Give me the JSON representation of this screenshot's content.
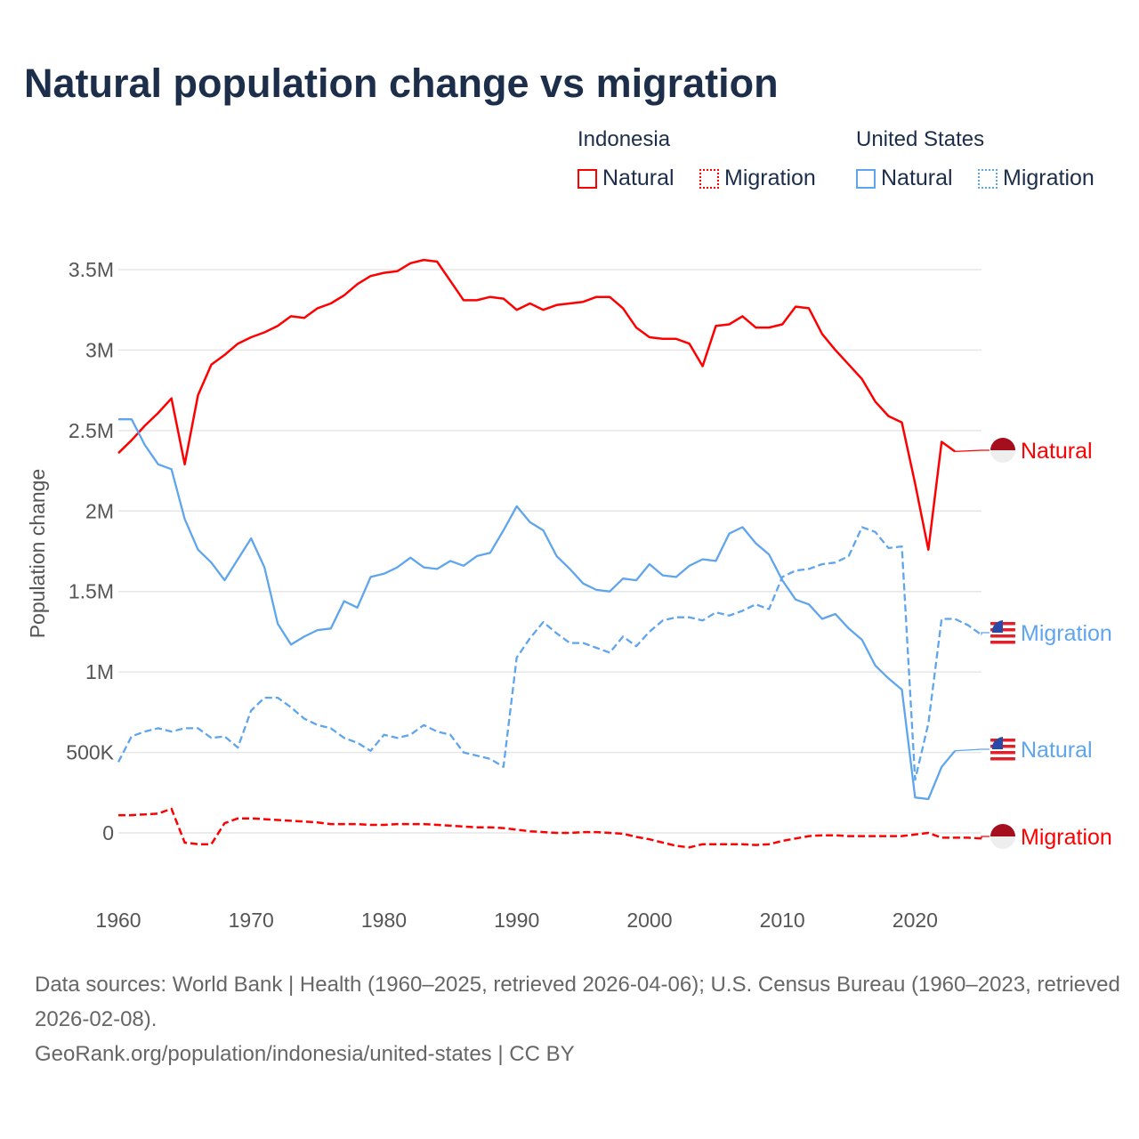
{
  "title": "Natural population change vs migration",
  "legend": {
    "groups": [
      {
        "name": "Indonesia",
        "items": [
          "Natural",
          "Migration"
        ]
      },
      {
        "name": "United States",
        "items": [
          "Natural",
          "Migration"
        ]
      }
    ]
  },
  "colors": {
    "indonesia": "#ff0000",
    "united_states": "#5fa5ee",
    "grid": "#e6e6e6",
    "axis_text": "#555555"
  },
  "footer": {
    "line1": "Data sources: World Bank | Health (1960–2025, retrieved 2026-04-06); U.S. Census Bureau (1960–2023, retrieved 2026-02-08).",
    "line2": "GeoRank.org/population/indonesia/united-states | CC BY"
  },
  "chart_data": {
    "type": "line",
    "title": "Natural population change vs migration",
    "ylabel": "Population change",
    "xlabel": "",
    "xlim": [
      1960,
      2025
    ],
    "ylim": [
      -0.3,
      3.6
    ],
    "y_unit": "millions",
    "yticks": [
      0,
      0.5,
      1,
      1.5,
      2,
      2.5,
      3,
      3.5
    ],
    "ytick_labels": [
      "0",
      "500K",
      "1M",
      "1.5M",
      "2M",
      "2.5M",
      "3M",
      "3.5M"
    ],
    "xticks": [
      1960,
      1970,
      1980,
      1990,
      2000,
      2010,
      2020
    ],
    "xtick_labels": [
      "1960",
      "1970",
      "1980",
      "1990",
      "2000",
      "2010",
      "2020"
    ],
    "grid": true,
    "series": [
      {
        "name": "Natural",
        "country": "Indonesia",
        "label": "Natural",
        "style": "solid",
        "start": 1960,
        "extend_to": 2025,
        "values": [
          2.36,
          2.44,
          2.53,
          2.61,
          2.7,
          2.29,
          2.72,
          2.91,
          2.97,
          3.04,
          3.08,
          3.11,
          3.15,
          3.21,
          3.2,
          3.26,
          3.29,
          3.34,
          3.41,
          3.46,
          3.48,
          3.49,
          3.54,
          3.56,
          3.55,
          3.43,
          3.31,
          3.31,
          3.33,
          3.32,
          3.25,
          3.29,
          3.25,
          3.28,
          3.29,
          3.3,
          3.33,
          3.33,
          3.26,
          3.14,
          3.08,
          3.07,
          3.07,
          3.04,
          2.9,
          3.15,
          3.16,
          3.21,
          3.14,
          3.14,
          3.16,
          3.27,
          3.26,
          3.1,
          3.0,
          2.91,
          2.82,
          2.68,
          2.59,
          2.55,
          2.17,
          1.76,
          2.43,
          2.37
        ]
      },
      {
        "name": "Migration",
        "country": "Indonesia",
        "label": "Migration",
        "style": "dashed",
        "start": 1960,
        "extend_to": 2025,
        "values": [
          0.11,
          0.11,
          0.115,
          0.12,
          0.15,
          -0.06,
          -0.07,
          -0.07,
          0.06,
          0.09,
          0.09,
          0.085,
          0.08,
          0.075,
          0.07,
          0.065,
          0.055,
          0.055,
          0.055,
          0.05,
          0.05,
          0.055,
          0.055,
          0.055,
          0.05,
          0.045,
          0.04,
          0.035,
          0.035,
          0.03,
          0.02,
          0.01,
          0.005,
          0,
          0,
          0.005,
          0.005,
          0,
          -0.005,
          -0.025,
          -0.04,
          -0.06,
          -0.08,
          -0.09,
          -0.07,
          -0.07,
          -0.07,
          -0.07,
          -0.075,
          -0.07,
          -0.05,
          -0.035,
          -0.02,
          -0.015,
          -0.015,
          -0.02,
          -0.02,
          -0.02,
          -0.02,
          -0.02,
          -0.01,
          0,
          -0.03,
          -0.03,
          -0.03,
          -0.035
        ]
      },
      {
        "name": "Natural",
        "country": "United States",
        "label": "Natural",
        "style": "solid",
        "start": 1960,
        "extend_to": 2025,
        "values": [
          2.57,
          2.57,
          2.41,
          2.29,
          2.26,
          1.95,
          1.76,
          1.68,
          1.57,
          1.7,
          1.83,
          1.65,
          1.3,
          1.17,
          1.22,
          1.26,
          1.27,
          1.44,
          1.4,
          1.59,
          1.61,
          1.65,
          1.71,
          1.65,
          1.64,
          1.69,
          1.66,
          1.72,
          1.74,
          1.88,
          2.03,
          1.93,
          1.88,
          1.72,
          1.64,
          1.55,
          1.51,
          1.5,
          1.58,
          1.57,
          1.67,
          1.6,
          1.59,
          1.66,
          1.7,
          1.69,
          1.86,
          1.9,
          1.8,
          1.73,
          1.57,
          1.45,
          1.42,
          1.33,
          1.36,
          1.27,
          1.2,
          1.04,
          0.96,
          0.89,
          0.22,
          0.21,
          0.41,
          0.51
        ]
      },
      {
        "name": "Migration",
        "country": "United States",
        "label": "Migration",
        "style": "dashed",
        "start": 1960,
        "extend_to": 2025,
        "values": [
          0.44,
          0.6,
          0.63,
          0.65,
          0.63,
          0.65,
          0.65,
          0.59,
          0.6,
          0.53,
          0.76,
          0.84,
          0.84,
          0.78,
          0.71,
          0.67,
          0.65,
          0.59,
          0.56,
          0.51,
          0.61,
          0.59,
          0.61,
          0.67,
          0.63,
          0.61,
          0.5,
          0.48,
          0.46,
          0.41,
          1.09,
          1.21,
          1.31,
          1.24,
          1.18,
          1.18,
          1.15,
          1.12,
          1.22,
          1.16,
          1.25,
          1.32,
          1.34,
          1.34,
          1.32,
          1.37,
          1.35,
          1.38,
          1.42,
          1.39,
          1.59,
          1.63,
          1.64,
          1.67,
          1.68,
          1.72,
          1.9,
          1.87,
          1.77,
          1.78,
          0.33,
          0.68,
          1.33,
          1.33,
          1.29,
          1.23
        ]
      }
    ]
  }
}
